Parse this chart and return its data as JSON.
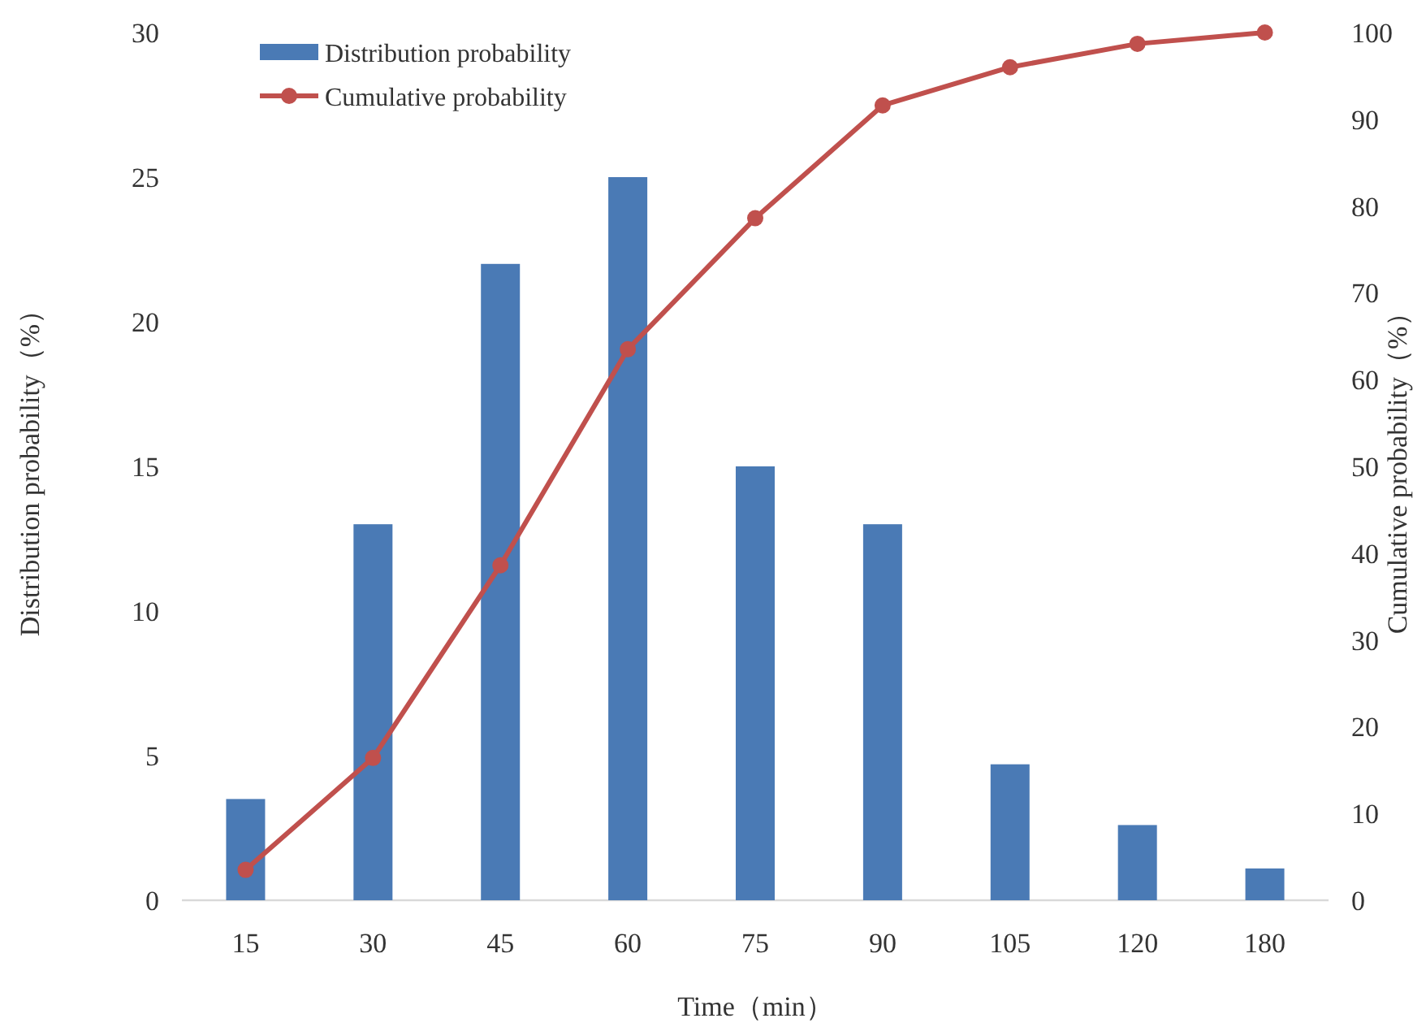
{
  "chart_data": {
    "type": "bar",
    "xlabel": "Time（min）",
    "ylabel": "Distribution probability（%）",
    "y2label": "Cumulative probability（%）",
    "categories": [
      "15",
      "30",
      "45",
      "60",
      "75",
      "90",
      "105",
      "120",
      "180"
    ],
    "series": [
      {
        "name": "Distribution probability",
        "color": "#4a7ab5",
        "values": [
          3.5,
          13,
          22,
          25,
          15,
          13,
          4.7,
          2.6,
          1.1
        ]
      },
      {
        "name": "Cumulative probability",
        "type": "line",
        "axis": "y2",
        "color": "#c0504d",
        "marker": "circle",
        "values": [
          3.5,
          16.4,
          38.6,
          63.5,
          78.6,
          91.6,
          96,
          98.7,
          100
        ]
      }
    ],
    "ylim": [
      0,
      30
    ],
    "yticks": [
      0,
      5,
      10,
      15,
      20,
      25,
      30
    ],
    "y2lim": [
      0,
      100
    ],
    "y2ticks": [
      0,
      10,
      20,
      30,
      40,
      50,
      60,
      70,
      80,
      90,
      100
    ],
    "legend": "top left",
    "grid": false
  }
}
